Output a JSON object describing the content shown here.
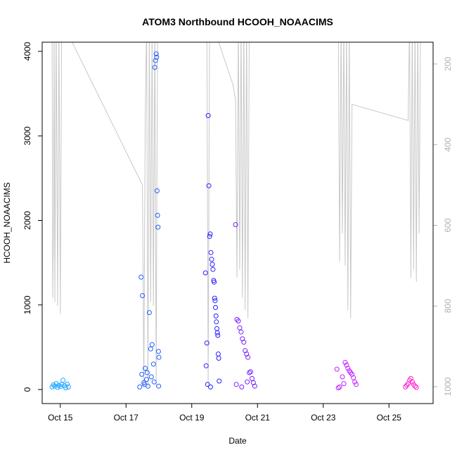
{
  "chart_data": {
    "type": "scatter",
    "title": "ATOM3 Northbound HCOOH_NOAACIMS",
    "xlabel": "Date",
    "ylabel": "HCOOH_NOAACIMS",
    "x_range": [
      "2017-10-14T00:00",
      "2017-10-26T00:00"
    ],
    "ylim": [
      0,
      4000
    ],
    "y_ticks": [
      0,
      1000,
      2000,
      3000,
      4000
    ],
    "x_ticks": [
      {
        "label": "Oct 15",
        "date": "2017-10-15"
      },
      {
        "label": "Oct 17",
        "date": "2017-10-17"
      },
      {
        "label": "Oct 19",
        "date": "2017-10-19"
      },
      {
        "label": "Oct 21",
        "date": "2017-10-21"
      },
      {
        "label": "Oct 23",
        "date": "2017-10-23"
      },
      {
        "label": "Oct 25",
        "date": "2017-10-25"
      }
    ],
    "secondary_axis": {
      "side": "right",
      "reversed": true,
      "ticks": [
        200,
        400,
        600,
        800,
        1000
      ],
      "color": "#b0b0b0"
    },
    "series": [
      {
        "color": "#1ea7ff",
        "points": [
          [
            "2017-10-14T18:00",
            30
          ],
          [
            "2017-10-14T19:00",
            55
          ],
          [
            "2017-10-14T20:00",
            40
          ],
          [
            "2017-10-14T21:00",
            70
          ],
          [
            "2017-10-14T22:00",
            25
          ],
          [
            "2017-10-14T23:00",
            50
          ],
          [
            "2017-10-15T00:00",
            35
          ],
          [
            "2017-10-15T01:00",
            60
          ],
          [
            "2017-10-15T02:00",
            110
          ],
          [
            "2017-10-15T03:00",
            45
          ],
          [
            "2017-10-15T04:00",
            20
          ],
          [
            "2017-10-15T05:00",
            65
          ],
          [
            "2017-10-15T06:00",
            30
          ]
        ]
      },
      {
        "color": "#1f5cff",
        "points": [
          [
            "2017-10-17T10:00",
            30
          ],
          [
            "2017-10-17T11:00",
            1330
          ],
          [
            "2017-10-17T12:00",
            1110
          ],
          [
            "2017-10-17T13:00",
            80
          ],
          [
            "2017-10-17T14:00",
            250
          ],
          [
            "2017-10-17T15:00",
            120
          ],
          [
            "2017-10-17T16:00",
            40
          ],
          [
            "2017-10-17T17:00",
            910
          ],
          [
            "2017-10-17T18:00",
            480
          ],
          [
            "2017-10-17T19:00",
            530
          ],
          [
            "2017-10-17T20:00",
            300
          ],
          [
            "2017-10-17T21:00",
            3810
          ],
          [
            "2017-10-17T21:30",
            3890
          ],
          [
            "2017-10-17T22:00",
            3970
          ],
          [
            "2017-10-17T22:20",
            3930
          ],
          [
            "2017-10-17T22:40",
            2350
          ],
          [
            "2017-10-17T23:00",
            2060
          ],
          [
            "2017-10-17T23:20",
            1920
          ],
          [
            "2017-10-17T23:40",
            450
          ],
          [
            "2017-10-18T00:00",
            380
          ],
          [
            "2017-10-17T11:30",
            180
          ],
          [
            "2017-10-17T13:30",
            60
          ],
          [
            "2017-10-17T15:30",
            200
          ],
          [
            "2017-10-17T18:30",
            150
          ],
          [
            "2017-10-17T20:30",
            90
          ],
          [
            "2017-10-17T23:50",
            40
          ]
        ]
      },
      {
        "color": "#2a1fff",
        "points": [
          [
            "2017-10-19T10:00",
            1380
          ],
          [
            "2017-10-19T11:00",
            550
          ],
          [
            "2017-10-19T12:00",
            3240
          ],
          [
            "2017-10-19T12:30",
            2410
          ],
          [
            "2017-10-19T13:00",
            1810
          ],
          [
            "2017-10-19T13:30",
            1840
          ],
          [
            "2017-10-19T14:00",
            1620
          ],
          [
            "2017-10-19T14:30",
            1540
          ],
          [
            "2017-10-19T15:00",
            1480
          ],
          [
            "2017-10-19T15:30",
            1420
          ],
          [
            "2017-10-19T16:00",
            1290
          ],
          [
            "2017-10-19T16:20",
            1270
          ],
          [
            "2017-10-19T16:40",
            1080
          ],
          [
            "2017-10-19T17:00",
            1050
          ],
          [
            "2017-10-19T17:20",
            970
          ],
          [
            "2017-10-19T17:40",
            870
          ],
          [
            "2017-10-19T18:00",
            800
          ],
          [
            "2017-10-19T18:20",
            720
          ],
          [
            "2017-10-19T18:40",
            670
          ],
          [
            "2017-10-19T19:00",
            640
          ],
          [
            "2017-10-19T19:20",
            420
          ],
          [
            "2017-10-19T19:40",
            370
          ],
          [
            "2017-10-19T20:00",
            100
          ],
          [
            "2017-10-19T10:30",
            280
          ],
          [
            "2017-10-19T11:30",
            60
          ],
          [
            "2017-10-19T13:40",
            30
          ]
        ]
      },
      {
        "color": "#7a1fff",
        "points": [
          [
            "2017-10-20T08:00",
            1950
          ],
          [
            "2017-10-20T09:00",
            830
          ],
          [
            "2017-10-20T10:00",
            810
          ],
          [
            "2017-10-20T11:00",
            730
          ],
          [
            "2017-10-20T12:00",
            680
          ],
          [
            "2017-10-20T13:00",
            600
          ],
          [
            "2017-10-20T14:00",
            560
          ],
          [
            "2017-10-20T15:00",
            460
          ],
          [
            "2017-10-20T16:00",
            420
          ],
          [
            "2017-10-20T17:00",
            380
          ],
          [
            "2017-10-20T18:00",
            200
          ],
          [
            "2017-10-20T19:00",
            210
          ],
          [
            "2017-10-20T20:00",
            130
          ],
          [
            "2017-10-20T21:00",
            80
          ],
          [
            "2017-10-20T22:00",
            40
          ],
          [
            "2017-10-20T08:30",
            60
          ],
          [
            "2017-10-20T12:30",
            30
          ],
          [
            "2017-10-20T16:30",
            90
          ]
        ]
      },
      {
        "color": "#c21fff",
        "points": [
          [
            "2017-10-23T10:00",
            240
          ],
          [
            "2017-10-23T12:00",
            30
          ],
          [
            "2017-10-23T14:00",
            150
          ],
          [
            "2017-10-23T16:00",
            320
          ],
          [
            "2017-10-23T17:00",
            290
          ],
          [
            "2017-10-23T18:00",
            250
          ],
          [
            "2017-10-23T19:00",
            220
          ],
          [
            "2017-10-23T20:00",
            200
          ],
          [
            "2017-10-23T21:00",
            180
          ],
          [
            "2017-10-23T22:00",
            140
          ],
          [
            "2017-10-23T23:00",
            90
          ],
          [
            "2017-10-24T00:00",
            60
          ],
          [
            "2017-10-23T11:00",
            20
          ],
          [
            "2017-10-23T15:00",
            70
          ]
        ]
      },
      {
        "color": "#ff1fd0",
        "points": [
          [
            "2017-10-25T12:00",
            30
          ],
          [
            "2017-10-25T13:00",
            50
          ],
          [
            "2017-10-25T14:00",
            70
          ],
          [
            "2017-10-25T15:00",
            110
          ],
          [
            "2017-10-25T16:00",
            130
          ],
          [
            "2017-10-25T17:00",
            90
          ],
          [
            "2017-10-25T18:00",
            60
          ],
          [
            "2017-10-25T19:00",
            40
          ],
          [
            "2017-10-25T20:00",
            25
          ]
        ]
      }
    ],
    "altitude_trace": {
      "color": "#c8c8c8",
      "points": [
        [
          "2017-10-14T18:00",
          100
        ],
        [
          "2017-10-14T18:30",
          780
        ],
        [
          "2017-10-14T19:00",
          620
        ],
        [
          "2017-10-14T19:30",
          100
        ],
        [
          "2017-10-14T20:00",
          790
        ],
        [
          "2017-10-14T21:00",
          100
        ],
        [
          "2017-10-14T22:00",
          800
        ],
        [
          "2017-10-14T23:00",
          100
        ],
        [
          "2017-10-15T00:00",
          820
        ],
        [
          "2017-10-15T01:00",
          100
        ],
        [
          "2017-10-15T02:00",
          100
        ],
        [
          "2017-10-17T12:00",
          500
        ],
        [
          "2017-10-17T13:00",
          1000
        ],
        [
          "2017-10-17T14:00",
          340
        ],
        [
          "2017-10-17T15:00",
          100
        ],
        [
          "2017-10-17T16:00",
          1000
        ],
        [
          "2017-10-17T17:00",
          100
        ],
        [
          "2017-10-17T18:00",
          790
        ],
        [
          "2017-10-17T19:00",
          100
        ],
        [
          "2017-10-17T20:00",
          800
        ],
        [
          "2017-10-17T21:00",
          100
        ],
        [
          "2017-10-17T22:00",
          1000
        ],
        [
          "2017-10-17T23:00",
          100
        ],
        [
          "2017-10-18T00:00",
          100
        ],
        [
          "2017-10-19T10:00",
          100
        ],
        [
          "2017-10-19T11:00",
          100
        ],
        [
          "2017-10-19T12:00",
          1000
        ],
        [
          "2017-10-19T13:00",
          100
        ],
        [
          "2017-10-19T14:00",
          100
        ],
        [
          "2017-10-19T15:00",
          100
        ],
        [
          "2017-10-20T06:00",
          250
        ],
        [
          "2017-10-20T08:00",
          290
        ],
        [
          "2017-10-20T09:00",
          730
        ],
        [
          "2017-10-20T10:00",
          100
        ],
        [
          "2017-10-20T11:00",
          710
        ],
        [
          "2017-10-20T12:00",
          100
        ],
        [
          "2017-10-20T13:00",
          780
        ],
        [
          "2017-10-20T14:00",
          100
        ],
        [
          "2017-10-20T15:00",
          810
        ],
        [
          "2017-10-20T16:00",
          100
        ],
        [
          "2017-10-20T17:00",
          830
        ],
        [
          "2017-10-20T18:00",
          100
        ],
        [
          "2017-10-20T19:00",
          100
        ],
        [
          "2017-10-23T11:00",
          100
        ],
        [
          "2017-10-23T12:00",
          690
        ],
        [
          "2017-10-23T13:00",
          100
        ],
        [
          "2017-10-23T14:00",
          620
        ],
        [
          "2017-10-23T15:00",
          100
        ],
        [
          "2017-10-23T16:00",
          700
        ],
        [
          "2017-10-23T17:00",
          100
        ],
        [
          "2017-10-23T18:00",
          810
        ],
        [
          "2017-10-23T19:00",
          100
        ],
        [
          "2017-10-23T20:00",
          830
        ],
        [
          "2017-10-23T21:00",
          300
        ],
        [
          "2017-10-25T14:00",
          340
        ],
        [
          "2017-10-25T15:00",
          100
        ],
        [
          "2017-10-25T16:00",
          730
        ],
        [
          "2017-10-25T17:00",
          100
        ],
        [
          "2017-10-25T18:00",
          710
        ],
        [
          "2017-10-25T19:00",
          100
        ],
        [
          "2017-10-25T20:00",
          740
        ],
        [
          "2017-10-25T21:00",
          100
        ],
        [
          "2017-10-25T22:00",
          620
        ],
        [
          "2017-10-25T23:00",
          100
        ]
      ]
    }
  }
}
